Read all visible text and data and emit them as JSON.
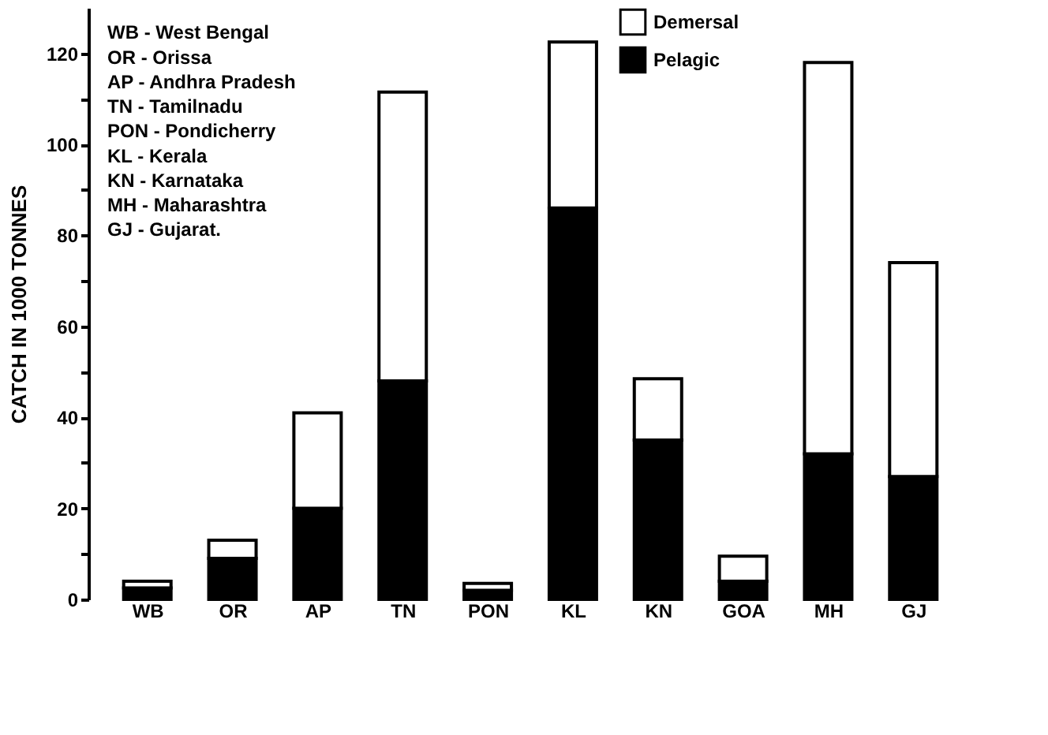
{
  "chart_data": {
    "type": "bar",
    "stacked": true,
    "ylabel": "CATCH IN 1000 TONNES",
    "categories": [
      "WB",
      "OR",
      "AP",
      "TN",
      "PON",
      "KL",
      "KN",
      "GOA",
      "MH",
      "GJ"
    ],
    "series": [
      {
        "name": "Pelagic",
        "color": "#000000",
        "values": [
          2.5,
          9,
          20,
          48,
          2,
          86,
          35,
          4,
          32,
          27
        ]
      },
      {
        "name": "Demersal",
        "color": "#ffffff",
        "values": [
          1.5,
          4,
          21,
          63.5,
          1.5,
          36.5,
          13.5,
          5.5,
          86,
          47
        ]
      }
    ],
    "ylim": [
      0,
      130
    ],
    "yticks": [
      0,
      {
        "value": 10,
        "label": null
      },
      20,
      {
        "value": 30,
        "label": null
      },
      40,
      {
        "value": 50,
        "label": null
      },
      60,
      {
        "value": 70,
        "label": null
      },
      80,
      {
        "value": 90,
        "label": null
      },
      100,
      {
        "value": 110,
        "label": null
      },
      120
    ],
    "grid": false,
    "legend": "top right",
    "annotations": [
      "WB - West Bengal",
      "OR - Orissa",
      "AP - Andhra Pradesh",
      "TN - Tamilnadu",
      "PON - Pondicherry",
      "KL - Kerala",
      "KN - Karnataka",
      "MH - Maharashtra",
      "GJ - Gujarat."
    ]
  }
}
